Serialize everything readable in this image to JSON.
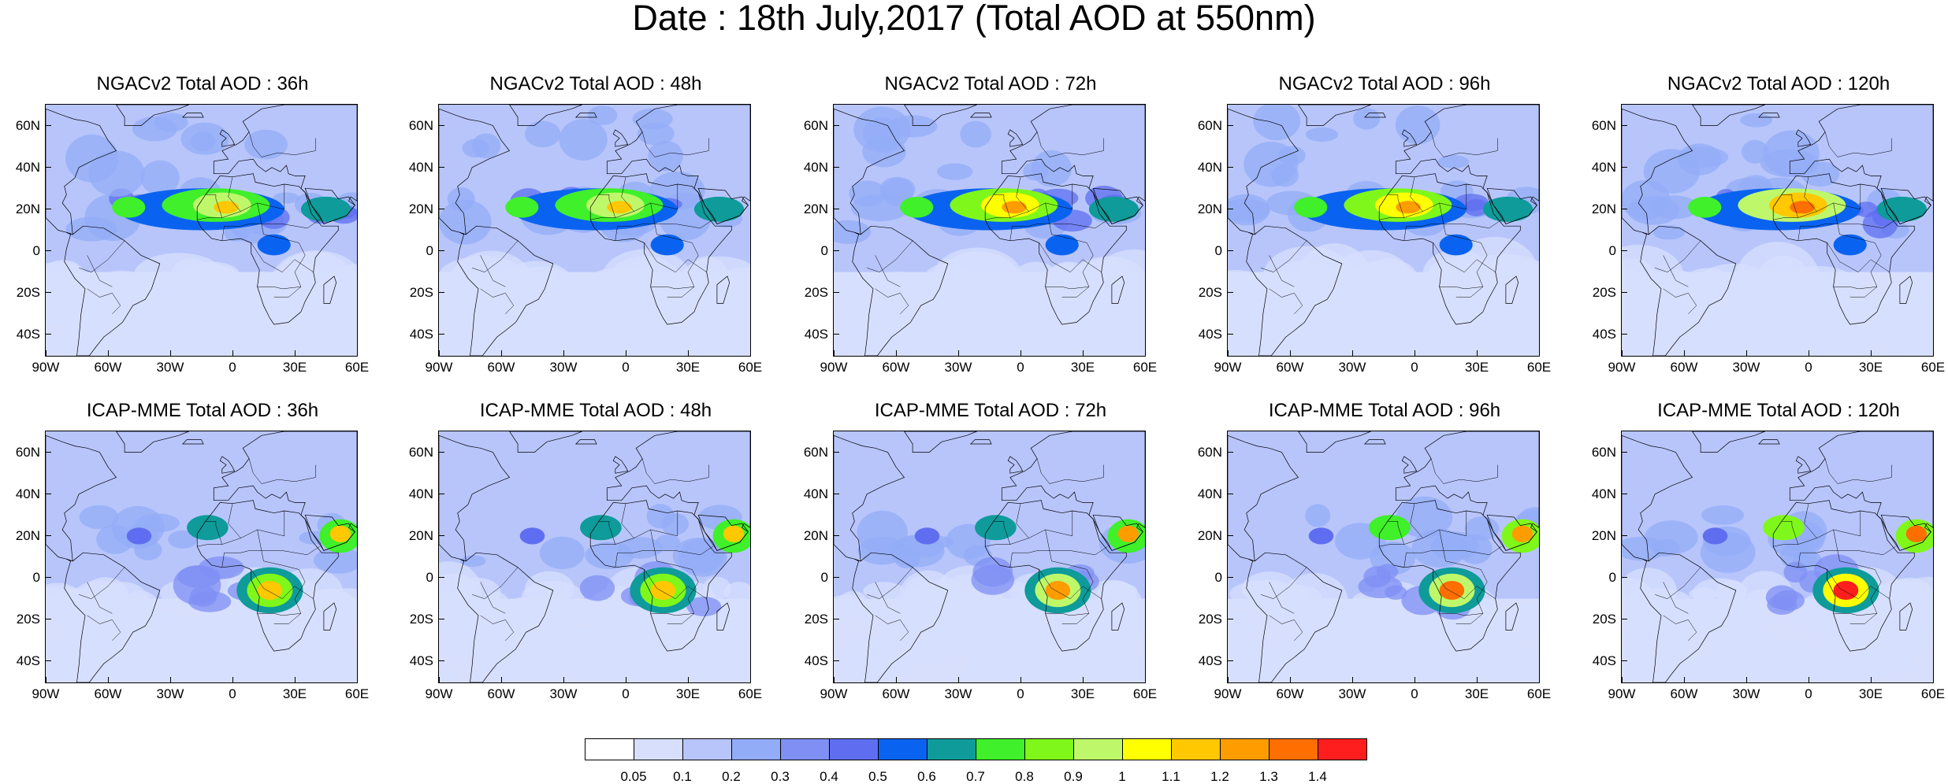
{
  "title": "Date : 18th July,2017 (Total AOD at 550nm)",
  "panels": [
    {
      "title": "NGACv2 Total AOD : 36h",
      "model": "ngac",
      "lead": 36
    },
    {
      "title": "NGACv2 Total AOD : 48h",
      "model": "ngac",
      "lead": 48
    },
    {
      "title": "NGACv2 Total AOD : 72h",
      "model": "ngac",
      "lead": 72
    },
    {
      "title": "NGACv2 Total AOD : 96h",
      "model": "ngac",
      "lead": 96
    },
    {
      "title": "NGACv2 Total AOD : 120h",
      "model": "ngac",
      "lead": 120
    },
    {
      "title": "ICAP-MME Total AOD : 36h",
      "model": "icap",
      "lead": 36
    },
    {
      "title": "ICAP-MME Total AOD : 48h",
      "model": "icap",
      "lead": 48
    },
    {
      "title": "ICAP-MME Total AOD : 72h",
      "model": "icap",
      "lead": 72
    },
    {
      "title": "ICAP-MME Total AOD : 96h",
      "model": "icap",
      "lead": 96
    },
    {
      "title": "ICAP-MME Total AOD : 120h",
      "model": "icap",
      "lead": 120
    }
  ],
  "map_extent": {
    "lon": [
      -90,
      60
    ],
    "lat": [
      -50,
      70
    ]
  },
  "lat_ticks": [
    {
      "value": 60,
      "label": "60N"
    },
    {
      "value": 40,
      "label": "40N"
    },
    {
      "value": 20,
      "label": "20N"
    },
    {
      "value": 0,
      "label": "0"
    },
    {
      "value": -20,
      "label": "20S"
    },
    {
      "value": -40,
      "label": "40S"
    }
  ],
  "lon_ticks": [
    {
      "value": -90,
      "label": "90W"
    },
    {
      "value": -60,
      "label": "60W"
    },
    {
      "value": -30,
      "label": "30W"
    },
    {
      "value": 0,
      "label": "0"
    },
    {
      "value": 30,
      "label": "30E"
    },
    {
      "value": 60,
      "label": "60E"
    }
  ],
  "colorbar": {
    "colors": [
      "#ffffff",
      "#d7dffd",
      "#b8c5fb",
      "#93acf7",
      "#7f8ff4",
      "#5f6ef0",
      "#0a63f0",
      "#0e9b9a",
      "#3ff02a",
      "#7ff71a",
      "#bef86a",
      "#ffff00",
      "#ffc800",
      "#ff9d00",
      "#ff6e00",
      "#ff1e1e"
    ],
    "labels": [
      "0.05",
      "0.1",
      "0.2",
      "0.3",
      "0.4",
      "0.5",
      "0.6",
      "0.7",
      "0.8",
      "0.9",
      "1",
      "1.1",
      "1.2",
      "1.3",
      "1.4"
    ]
  }
}
